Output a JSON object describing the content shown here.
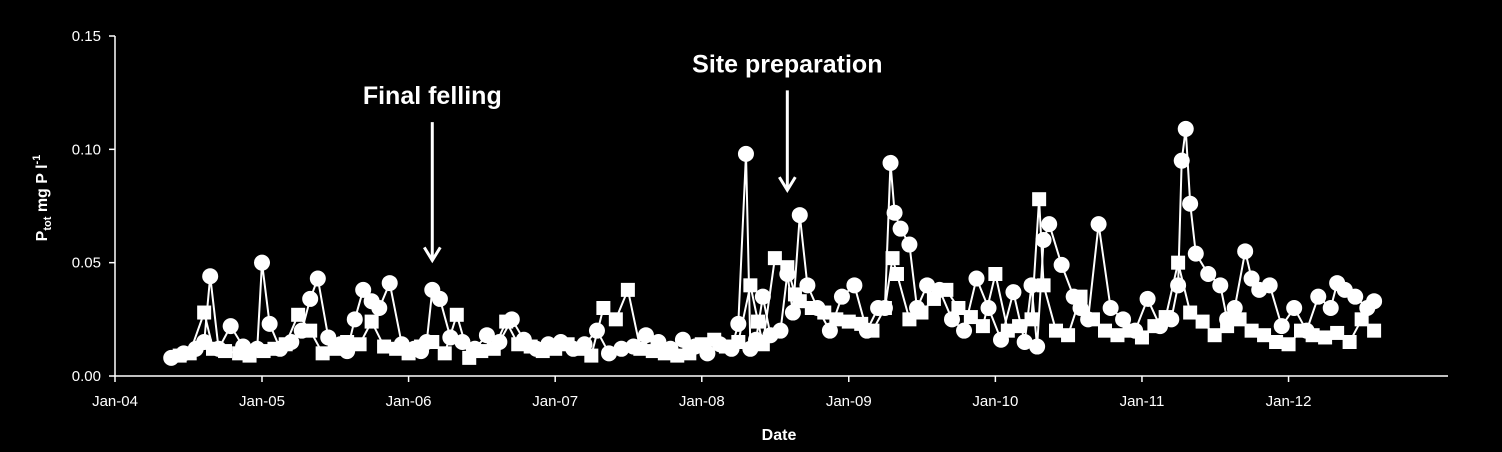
{
  "chart_data": {
    "type": "scatter",
    "title": "",
    "xlabel": "Date",
    "ylabel": "P",
    "ylabel_sub": "tot",
    "ylabel_mid": " mg P l",
    "ylabel_sup": "-1",
    "xlim": [
      "2004-01-01",
      "2013-02-01"
    ],
    "ylim": [
      0,
      0.15
    ],
    "x_ticks": [
      "2004-01-01",
      "2005-01-01",
      "2006-01-01",
      "2007-01-01",
      "2008-01-01",
      "2009-01-01",
      "2010-01-01",
      "2011-01-01",
      "2012-01-01"
    ],
    "x_tick_labels": [
      "Jan-04",
      "Jan-05",
      "Jan-06",
      "Jan-07",
      "Jan-08",
      "Jan-09",
      "Jan-10",
      "Jan-11",
      "Jan-12"
    ],
    "y_ticks": [
      0,
      0.05,
      0.1,
      0.15
    ],
    "y_tick_labels": [
      "0.00",
      "0.05",
      "0.10",
      "0.15"
    ],
    "grid": false,
    "legend": "none",
    "colors": {
      "background": "#000000",
      "foreground": "#ffffff"
    },
    "annotations": [
      {
        "text": "Final felling",
        "x": "2006-03-01",
        "y_from": 0.112,
        "y_to": 0.051
      },
      {
        "text": "Site preparation",
        "x": "2008-08-01",
        "y_from": 0.126,
        "y_to": 0.082
      }
    ],
    "series": [
      {
        "marker": "square",
        "line": true,
        "x": [
          "2004-06-10",
          "2004-07-05",
          "2004-08-10",
          "2004-09-01",
          "2004-10-01",
          "2004-11-05",
          "2004-12-01",
          "2005-01-05",
          "2005-02-01",
          "2005-03-01",
          "2005-04-01",
          "2005-05-01",
          "2005-06-01",
          "2005-07-01",
          "2005-08-01",
          "2005-09-01",
          "2005-10-01",
          "2005-11-01",
          "2005-12-01",
          "2006-01-01",
          "2006-02-01",
          "2006-03-01",
          "2006-04-01",
          "2006-05-01",
          "2006-06-01",
          "2006-07-01",
          "2006-08-01",
          "2006-09-01",
          "2006-10-01",
          "2006-11-01",
          "2006-12-01",
          "2007-01-01",
          "2007-02-01",
          "2007-03-01",
          "2007-04-01",
          "2007-05-01",
          "2007-06-01",
          "2007-07-01",
          "2007-08-01",
          "2007-09-01",
          "2007-10-01",
          "2007-11-01",
          "2007-12-01",
          "2008-01-01",
          "2008-02-01",
          "2008-03-01",
          "2008-04-01",
          "2008-05-01",
          "2008-05-20",
          "2008-06-01",
          "2008-07-01",
          "2008-08-01",
          "2008-08-20",
          "2008-09-01",
          "2008-10-01",
          "2008-11-01",
          "2008-12-01",
          "2009-01-01",
          "2009-02-01",
          "2009-03-01",
          "2009-04-01",
          "2009-04-20",
          "2009-05-01",
          "2009-06-01",
          "2009-07-01",
          "2009-08-01",
          "2009-09-01",
          "2009-10-01",
          "2009-11-01",
          "2009-12-01",
          "2010-01-01",
          "2010-02-01",
          "2010-03-01",
          "2010-04-01",
          "2010-04-20",
          "2010-05-01",
          "2010-06-01",
          "2010-07-01",
          "2010-08-01",
          "2010-09-01",
          "2010-10-01",
          "2010-11-01",
          "2010-12-01",
          "2011-01-01",
          "2011-02-01",
          "2011-03-01",
          "2011-04-01",
          "2011-05-01",
          "2011-06-01",
          "2011-07-01",
          "2011-08-01",
          "2011-09-01",
          "2011-10-01",
          "2011-11-01",
          "2011-12-01",
          "2012-01-01",
          "2012-02-01",
          "2012-03-01",
          "2012-04-01",
          "2012-05-01",
          "2012-06-01",
          "2012-07-01",
          "2012-08-01"
        ],
        "y": [
          0.009,
          0.01,
          0.028,
          0.012,
          0.011,
          0.01,
          0.009,
          0.011,
          0.012,
          0.014,
          0.027,
          0.02,
          0.01,
          0.012,
          0.015,
          0.014,
          0.024,
          0.013,
          0.012,
          0.01,
          0.013,
          0.015,
          0.01,
          0.027,
          0.008,
          0.011,
          0.012,
          0.024,
          0.014,
          0.013,
          0.011,
          0.012,
          0.014,
          0.012,
          0.009,
          0.03,
          0.025,
          0.038,
          0.012,
          0.011,
          0.01,
          0.009,
          0.01,
          0.014,
          0.016,
          0.013,
          0.015,
          0.04,
          0.024,
          0.014,
          0.052,
          0.048,
          0.036,
          0.033,
          0.03,
          0.028,
          0.025,
          0.024,
          0.023,
          0.02,
          0.03,
          0.052,
          0.045,
          0.025,
          0.028,
          0.034,
          0.038,
          0.03,
          0.026,
          0.022,
          0.045,
          0.02,
          0.022,
          0.025,
          0.078,
          0.04,
          0.02,
          0.018,
          0.035,
          0.025,
          0.02,
          0.018,
          0.02,
          0.017,
          0.022,
          0.026,
          0.05,
          0.028,
          0.024,
          0.018,
          0.022,
          0.025,
          0.02,
          0.018,
          0.015,
          0.014,
          0.02,
          0.018,
          0.017,
          0.019,
          0.015,
          0.025,
          0.02
        ]
      },
      {
        "marker": "circle",
        "line": true,
        "x": [
          "2004-05-20",
          "2004-06-20",
          "2004-07-20",
          "2004-08-10",
          "2004-08-25",
          "2004-09-15",
          "2004-10-15",
          "2004-11-15",
          "2004-12-20",
          "2005-01-01",
          "2005-01-20",
          "2005-02-15",
          "2005-03-15",
          "2005-04-10",
          "2005-05-01",
          "2005-05-20",
          "2005-06-15",
          "2005-07-15",
          "2005-08-01",
          "2005-08-20",
          "2005-09-10",
          "2005-10-01",
          "2005-10-20",
          "2005-11-15",
          "2005-12-15",
          "2006-01-15",
          "2006-02-01",
          "2006-02-15",
          "2006-03-01",
          "2006-03-20",
          "2006-04-15",
          "2006-05-15",
          "2006-06-15",
          "2006-07-15",
          "2006-08-15",
          "2006-09-15",
          "2006-10-15",
          "2006-11-15",
          "2006-12-15",
          "2007-01-15",
          "2007-02-15",
          "2007-03-15",
          "2007-04-15",
          "2007-05-15",
          "2007-06-15",
          "2007-07-15",
          "2007-08-15",
          "2007-09-15",
          "2007-10-15",
          "2007-11-15",
          "2007-12-15",
          "2008-01-15",
          "2008-02-15",
          "2008-03-15",
          "2008-04-01",
          "2008-04-20",
          "2008-05-01",
          "2008-05-15",
          "2008-06-01",
          "2008-06-20",
          "2008-07-15",
          "2008-08-01",
          "2008-08-15",
          "2008-09-01",
          "2008-09-20",
          "2008-10-15",
          "2008-11-15",
          "2008-12-15",
          "2009-01-15",
          "2009-02-15",
          "2009-03-15",
          "2009-04-01",
          "2009-04-15",
          "2009-04-25",
          "2009-05-10",
          "2009-06-01",
          "2009-06-20",
          "2009-07-15",
          "2009-08-15",
          "2009-09-15",
          "2009-10-15",
          "2009-11-15",
          "2009-12-15",
          "2010-01-15",
          "2010-02-15",
          "2010-03-15",
          "2010-04-01",
          "2010-04-15",
          "2010-05-01",
          "2010-05-15",
          "2010-06-15",
          "2010-07-15",
          "2010-08-01",
          "2010-08-20",
          "2010-09-15",
          "2010-10-15",
          "2010-11-15",
          "2010-12-15",
          "2011-01-15",
          "2011-02-15",
          "2011-03-15",
          "2011-04-01",
          "2011-04-10",
          "2011-04-20",
          "2011-05-01",
          "2011-05-15",
          "2011-06-15",
          "2011-07-15",
          "2011-08-01",
          "2011-08-20",
          "2011-09-15",
          "2011-10-01",
          "2011-10-20",
          "2011-11-15",
          "2011-12-15",
          "2012-01-15",
          "2012-02-15",
          "2012-03-15",
          "2012-04-15",
          "2012-05-01",
          "2012-05-20",
          "2012-06-15",
          "2012-07-15",
          "2012-08-01"
        ],
        "y": [
          0.008,
          0.01,
          0.012,
          0.015,
          0.044,
          0.012,
          0.022,
          0.013,
          0.012,
          0.05,
          0.023,
          0.012,
          0.015,
          0.02,
          0.034,
          0.043,
          0.017,
          0.014,
          0.011,
          0.025,
          0.038,
          0.033,
          0.03,
          0.041,
          0.014,
          0.012,
          0.011,
          0.015,
          0.038,
          0.034,
          0.017,
          0.015,
          0.012,
          0.018,
          0.015,
          0.025,
          0.016,
          0.012,
          0.014,
          0.015,
          0.012,
          0.014,
          0.02,
          0.01,
          0.012,
          0.013,
          0.018,
          0.015,
          0.012,
          0.016,
          0.013,
          0.01,
          0.014,
          0.012,
          0.023,
          0.098,
          0.012,
          0.016,
          0.035,
          0.018,
          0.02,
          0.045,
          0.028,
          0.071,
          0.04,
          0.03,
          0.02,
          0.035,
          0.04,
          0.02,
          0.03,
          0.03,
          0.094,
          0.072,
          0.065,
          0.058,
          0.03,
          0.04,
          0.038,
          0.025,
          0.02,
          0.043,
          0.03,
          0.016,
          0.037,
          0.015,
          0.04,
          0.013,
          0.06,
          0.067,
          0.049,
          0.035,
          0.03,
          0.025,
          0.067,
          0.03,
          0.025,
          0.02,
          0.034,
          0.022,
          0.025,
          0.04,
          0.095,
          0.109,
          0.076,
          0.054,
          0.045,
          0.04,
          0.025,
          0.03,
          0.055,
          0.043,
          0.038,
          0.04,
          0.022,
          0.03,
          0.02,
          0.035,
          0.03,
          0.041,
          0.038,
          0.035,
          0.03,
          0.033
        ]
      }
    ]
  }
}
